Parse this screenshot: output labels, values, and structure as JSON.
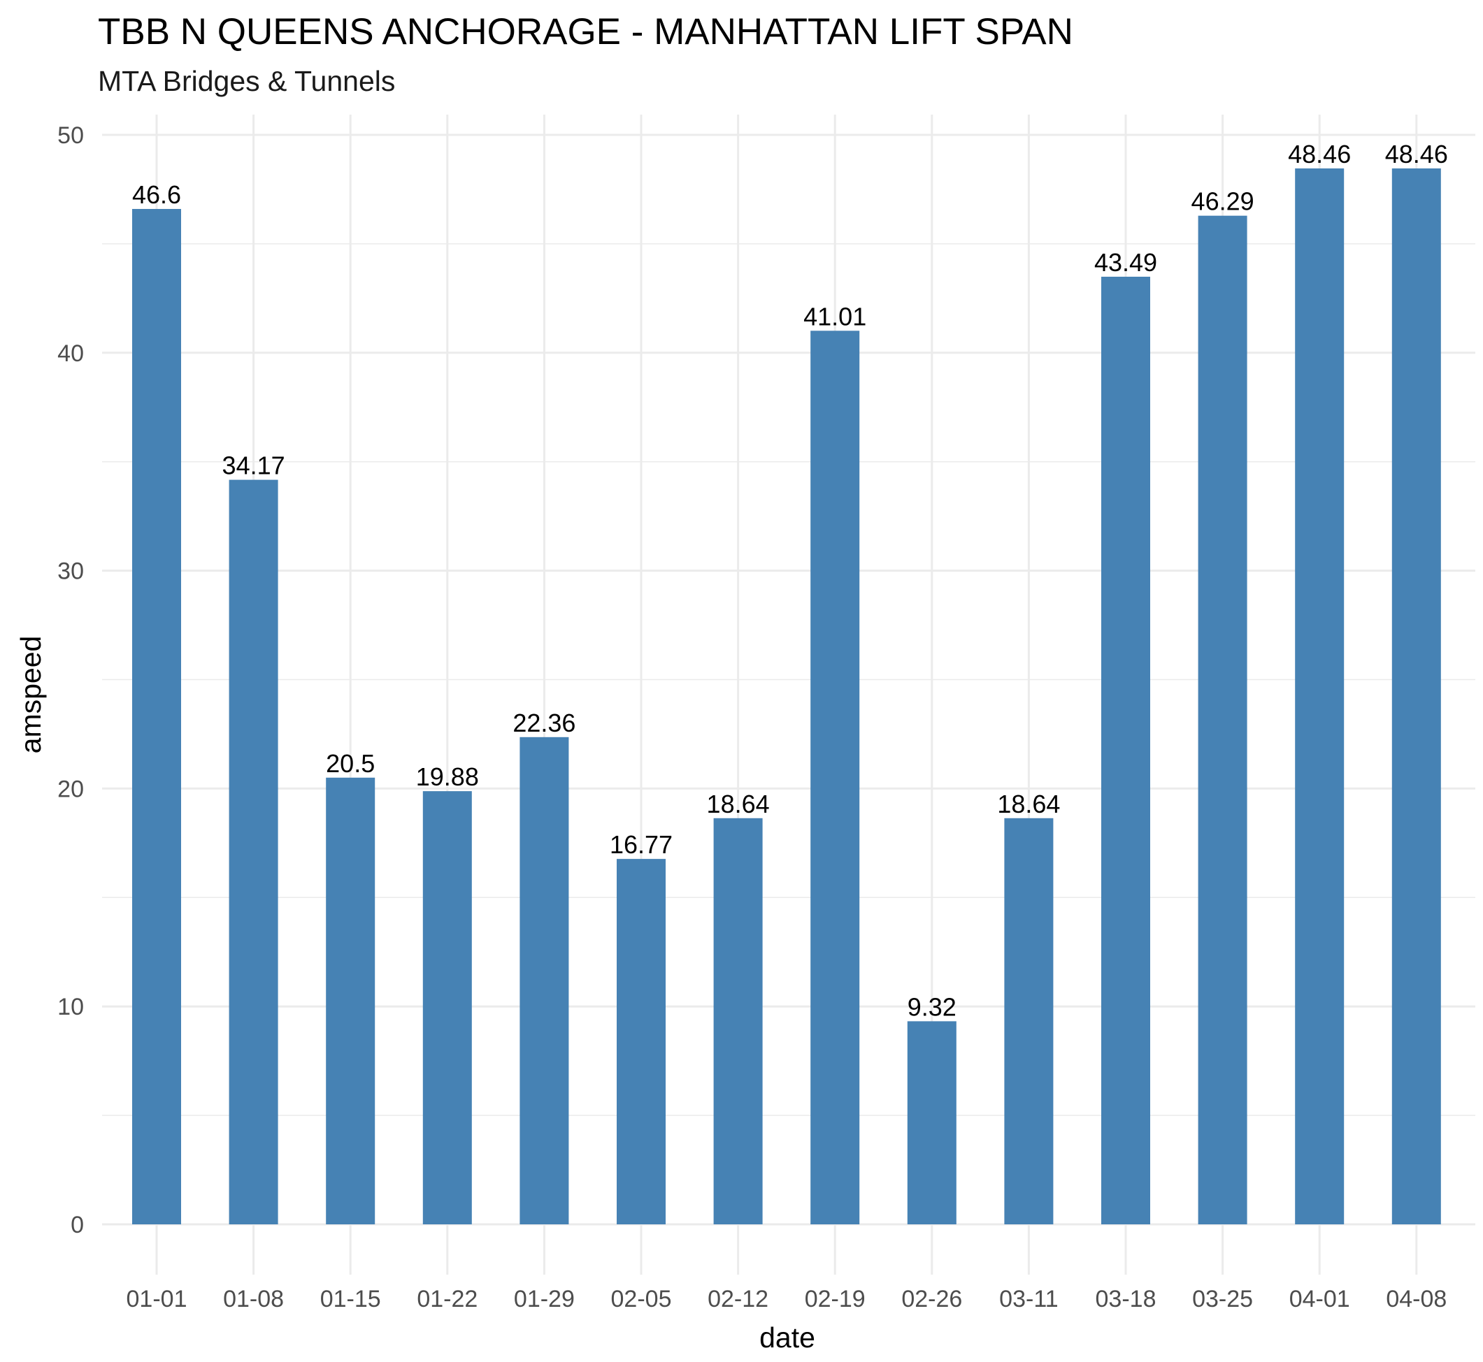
{
  "chart_data": {
    "type": "bar",
    "title": "TBB N QUEENS ANCHORAGE - MANHATTAN LIFT SPAN",
    "subtitle": "MTA Bridges & Tunnels",
    "xlabel": "date",
    "ylabel": "amspeed",
    "categories": [
      "01-01",
      "01-08",
      "01-15",
      "01-22",
      "01-29",
      "02-05",
      "02-12",
      "02-19",
      "02-26",
      "03-11",
      "03-18",
      "03-25",
      "04-01",
      "04-08"
    ],
    "values": [
      46.6,
      34.17,
      20.5,
      19.88,
      22.36,
      16.77,
      18.64,
      41.01,
      9.32,
      18.64,
      43.49,
      46.29,
      48.46,
      48.46
    ],
    "value_labels": [
      "46.6",
      "34.17",
      "20.5",
      "19.88",
      "22.36",
      "16.77",
      "18.64",
      "41.01",
      "9.32",
      "18.64",
      "43.49",
      "46.29",
      "48.46",
      "48.46"
    ],
    "ylim": [
      0,
      50
    ],
    "yticks": [
      "0",
      "10",
      "20",
      "30",
      "40",
      "50"
    ],
    "grid": true,
    "legend": "none",
    "bar_color": "#4682B4",
    "grid_color": "#EBEBEB"
  }
}
